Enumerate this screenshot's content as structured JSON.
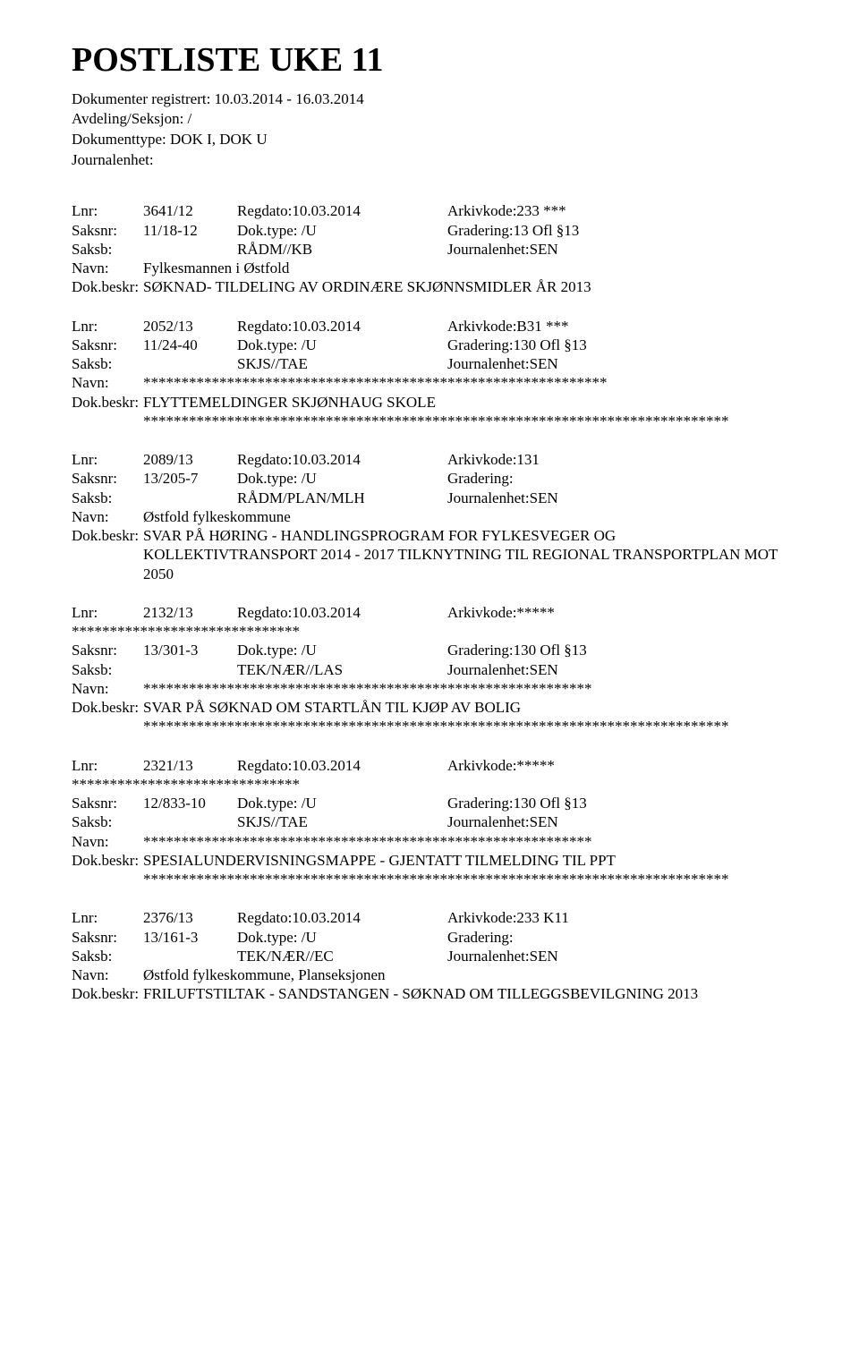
{
  "header": {
    "title": "POSTLISTE UKE 11",
    "line1": "Dokumenter registrert: 10.03.2014 - 16.03.2014",
    "line2": "Avdeling/Seksjon: /",
    "line3": "Dokumenttype: DOK I, DOK U",
    "line4": "Journalenhet:"
  },
  "labels": {
    "lnr": "Lnr:",
    "saksnr": "Saksnr:",
    "saksb": "Saksb:",
    "navn": "Navn:",
    "dokbeskr": "Dok.beskr:",
    "regdato": "Regdato:",
    "doktype": "Dok.type:",
    "arkivkode": "Arkivkode:",
    "gradering": "Gradering:",
    "journalenhet": "Journalenhet:"
  },
  "entries": [
    {
      "lnr": "3641/12",
      "regdato": "10.03.2014",
      "arkivkode": "233 ***",
      "saksnr": "11/18-12",
      "doktype": "/U",
      "gradering": "13 Ofl §13",
      "saksb": "RÅDM//KB",
      "journalenhet": "SEN",
      "navn": "Fylkesmannen i Østfold",
      "beskr": "SØKNAD- TILDELING AV ORDINÆRE SKJØNNSMIDLER ÅR 2013",
      "stars_after": false,
      "navn_stars": false,
      "arkiv_full_stars": false,
      "stars_leading": false
    },
    {
      "lnr": "2052/13",
      "regdato": "10.03.2014",
      "arkivkode": "B31 ***",
      "saksnr": "11/24-40",
      "doktype": "/U",
      "gradering": "130 Ofl §13",
      "saksb": "SKJS//TAE",
      "journalenhet": "SEN",
      "navn": "*************************************************************",
      "beskr": "FLYTTEMELDINGER SKJØNHAUG SKOLE",
      "stars_after": true,
      "navn_stars": true,
      "arkiv_full_stars": false,
      "stars_leading": false
    },
    {
      "lnr": "2089/13",
      "regdato": "10.03.2014",
      "arkivkode": "131",
      "saksnr": "13/205-7",
      "doktype": "/U",
      "gradering": "",
      "saksb": "RÅDM/PLAN/MLH",
      "journalenhet": "SEN",
      "navn": "Østfold fylkeskommune",
      "beskr": "SVAR PÅ HØRING - HANDLINGSPROGRAM FOR FYLKESVEGER OG KOLLEKTIVTRANSPORT 2014 - 2017 TILKNYTNING TIL REGIONAL TRANSPORTPLAN MOT 2050",
      "stars_after": false,
      "navn_stars": false,
      "arkiv_full_stars": false,
      "stars_leading": false
    },
    {
      "lnr": "2132/13",
      "regdato": "10.03.2014",
      "arkivkode": "*****",
      "saksnr": "13/301-3",
      "doktype": "/U",
      "gradering": "130 Ofl §13",
      "saksb": "TEK/NÆR//LAS",
      "journalenhet": "SEN",
      "navn": "***********************************************************",
      "beskr": "SVAR PÅ SØKNAD OM STARTLÅN TIL KJØP AV BOLIG",
      "stars_after": true,
      "navn_stars": true,
      "arkiv_full_stars": true,
      "stars_leading": true
    },
    {
      "lnr": "2321/13",
      "regdato": "10.03.2014",
      "arkivkode": "*****",
      "saksnr": "12/833-10",
      "doktype": "/U",
      "gradering": "130 Ofl §13",
      "saksb": "SKJS//TAE",
      "journalenhet": "SEN",
      "navn": "***********************************************************",
      "beskr": "SPESIALUNDERVISNINGSMAPPE - GJENTATT TILMELDING TIL PPT",
      "stars_after": true,
      "navn_stars": true,
      "arkiv_full_stars": true,
      "stars_leading": true
    },
    {
      "lnr": "2376/13",
      "regdato": "10.03.2014",
      "arkivkode": "233 K11",
      "saksnr": "13/161-3",
      "doktype": "/U",
      "gradering": "",
      "saksb": "TEK/NÆR//EC",
      "journalenhet": "SEN",
      "navn": "Østfold fylkeskommune, Planseksjonen",
      "beskr": "FRILUFTSTILTAK - SANDSTANGEN - SØKNAD OM TILLEGGSBEVILGNING 2013",
      "stars_after": false,
      "navn_stars": false,
      "arkiv_full_stars": false,
      "stars_leading": false
    }
  ],
  "stars_long": "*****************************************************************************",
  "stars_short": "******************************"
}
